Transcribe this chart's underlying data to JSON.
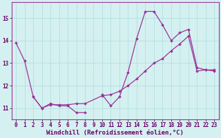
{
  "line1_x": [
    0,
    1,
    2,
    3,
    4,
    5,
    6,
    7,
    8,
    9,
    10,
    11,
    12,
    13,
    14,
    15,
    16,
    17,
    18,
    19,
    20,
    21,
    22,
    23
  ],
  "line1_y": [
    13.9,
    13.1,
    11.5,
    11.0,
    11.2,
    11.1,
    11.1,
    10.8,
    10.8,
    null,
    11.6,
    11.1,
    11.5,
    12.6,
    14.1,
    15.3,
    15.3,
    14.7,
    14.0,
    14.35,
    14.5,
    12.8,
    12.7,
    12.7
  ],
  "line2_x": [
    2,
    3,
    4,
    5,
    6,
    7,
    8,
    10,
    11,
    12,
    13,
    14,
    15,
    16,
    17,
    18,
    19,
    20,
    21,
    22,
    23
  ],
  "line2_y": [
    11.5,
    11.0,
    11.15,
    11.15,
    11.15,
    11.2,
    11.2,
    11.55,
    11.6,
    11.75,
    12.0,
    12.3,
    12.65,
    13.0,
    13.2,
    13.55,
    13.85,
    14.2,
    12.65,
    12.7,
    12.65
  ],
  "line_color": "#993399",
  "marker": "D",
  "marker_size": 2.0,
  "linewidth": 0.9,
  "bg_color": "#D5F0F0",
  "grid_color": "#AADDDD",
  "xlabel": "Windchill (Refroidissement éolien,°C)",
  "ylabel": "",
  "xlim": [
    -0.5,
    23.5
  ],
  "ylim": [
    10.5,
    15.7
  ],
  "yticks": [
    11,
    12,
    13,
    14,
    15
  ],
  "xticks": [
    0,
    1,
    2,
    3,
    4,
    5,
    6,
    7,
    8,
    9,
    10,
    11,
    12,
    13,
    14,
    15,
    16,
    17,
    18,
    19,
    20,
    21,
    22,
    23
  ],
  "tick_fontsize": 5.5,
  "xlabel_fontsize": 6.5
}
